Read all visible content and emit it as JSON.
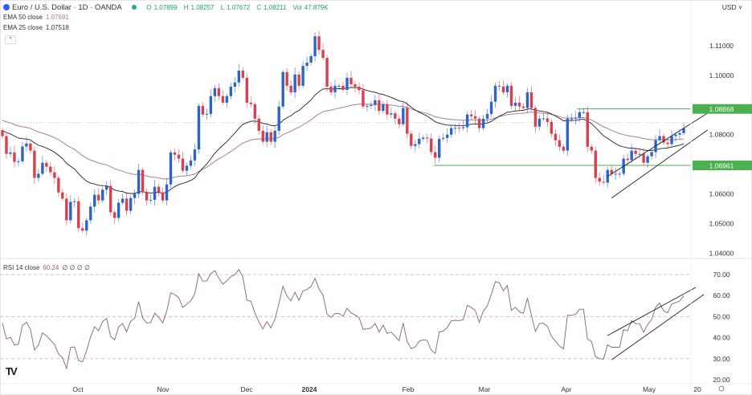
{
  "header": {
    "symbol": "Euro / U.S. Dollar · 1D · OANDA",
    "open_label": "O",
    "open": "1.07899",
    "high_label": "H",
    "high": "1.08257",
    "low_label": "L",
    "low": "1.07672",
    "close_label": "C",
    "close": "1.08211",
    "vol_label": "Vol",
    "vol": "47.879K",
    "collapse_icon": "chevron-up-icon"
  },
  "indicators": {
    "ema50": {
      "label": "EMA 50 close",
      "value": "1.07691",
      "color": "#b27c8c"
    },
    "ema25": {
      "label": "EMA 25 close",
      "value": "1.07518",
      "color": "#222222"
    },
    "rsi": {
      "label": "RSI 14 close",
      "value": "60.24",
      "extras": "∅ ∅ ∅ ∅",
      "color": "#8e5e70"
    }
  },
  "currency": "USD",
  "branding": "TV",
  "colors": {
    "up": "#2c64c9",
    "down": "#d9404f",
    "level": "#4caf50"
  },
  "chart_data": {
    "type": "candlestick",
    "price_axis": {
      "ticks": [
        "1.11000",
        "1.10000",
        "1.08000",
        "1.06000",
        "1.05000",
        "1.04000"
      ],
      "range": [
        1.0375,
        1.1165
      ]
    },
    "rsi_axis": {
      "ticks": [
        "70.00",
        "60.00",
        "50.00",
        "40.00",
        "30.00",
        "20.00"
      ],
      "dashed_levels": [
        70,
        50,
        30
      ]
    },
    "x_ticks": [
      "Oct",
      "Nov",
      "Dec",
      "2024",
      "Feb",
      "Mar",
      "Apr",
      "May",
      "20"
    ],
    "closes": [
      1.0795,
      1.0735,
      1.074,
      1.0708,
      1.071,
      1.076,
      1.077,
      1.0746,
      1.0654,
      1.0668,
      1.0705,
      1.0692,
      1.0673,
      1.0654,
      1.0605,
      1.0584,
      1.0511,
      1.0573,
      1.0575,
      1.0484,
      1.0476,
      1.0511,
      1.0557,
      1.0597,
      1.0578,
      1.0614,
      1.0627,
      1.0538,
      1.0519,
      1.057,
      1.0584,
      1.0543,
      1.0586,
      1.06,
      1.0681,
      1.0605,
      1.0578,
      1.058,
      1.0624,
      1.0605,
      1.0578,
      1.0632,
      1.074,
      1.0732,
      1.0719,
      1.0678,
      1.0695,
      1.0713,
      1.075,
      1.0897,
      1.0868,
      1.087,
      1.093,
      1.0957,
      1.093,
      1.0908,
      1.093,
      1.0962,
      1.0976,
      1.1016,
      1.0992,
      1.0908,
      1.0903,
      1.0854,
      1.0813,
      1.0776,
      1.0808,
      1.0776,
      1.0813,
      1.0895,
      1.1011,
      1.0965,
      1.0943,
      1.1003,
      1.0965,
      1.1032,
      1.1043,
      1.1065,
      1.1132,
      1.1086,
      1.1059,
      1.0962,
      1.0943,
      1.0965,
      1.0965,
      1.0951,
      1.0992,
      1.097,
      1.0962,
      1.095,
      1.0895,
      1.0897,
      1.09,
      1.0916,
      1.088,
      1.0903,
      1.0868,
      1.0872,
      1.0854,
      1.0835,
      1.089,
      1.0803,
      1.0762,
      1.0768,
      1.0786,
      1.079,
      1.0787,
      1.0741,
      1.0722,
      1.0786,
      1.0789,
      1.08,
      1.0822,
      1.0823,
      1.0822,
      1.0825,
      1.0868,
      1.0862,
      1.0854,
      1.0822,
      1.0854,
      1.087,
      1.0911,
      1.0965,
      1.0962,
      1.0943,
      1.0965,
      1.0897,
      1.0908,
      1.0895,
      1.089,
      1.0943,
      1.089,
      1.0827,
      1.0854,
      1.0855,
      1.0843,
      1.0803,
      1.0781,
      1.0759,
      1.0746,
      1.0854,
      1.0854,
      1.0857,
      1.0876,
      1.0876,
      1.0759,
      1.0746,
      1.0654,
      1.0641,
      1.0638,
      1.0681,
      1.0668,
      1.0668,
      1.0668,
      1.0719,
      1.0714,
      1.0746,
      1.0735,
      1.0735,
      1.0705,
      1.0727,
      1.0741,
      1.0781,
      1.0795,
      1.0773,
      1.0768,
      1.0795,
      1.08,
      1.0805,
      1.0821
    ],
    "levels": [
      {
        "price": 1.08868,
        "label": "1.08868"
      },
      {
        "price": 1.06961,
        "label": "1.06961"
      }
    ],
    "last_price_line": 1.0841,
    "price_channel": [
      {
        "from": [
          151,
          1.0659
        ],
        "to": [
          176,
          1.0873
        ]
      },
      {
        "from": [
          152,
          1.0586
        ],
        "to": [
          176,
          1.0816
        ]
      }
    ],
    "rsi_channel": [
      {
        "from": [
          151,
          41.0
        ],
        "to": [
          173,
          63.9
        ]
      },
      {
        "from": [
          152,
          29.5
        ],
        "to": [
          175,
          60.5
        ]
      }
    ]
  }
}
